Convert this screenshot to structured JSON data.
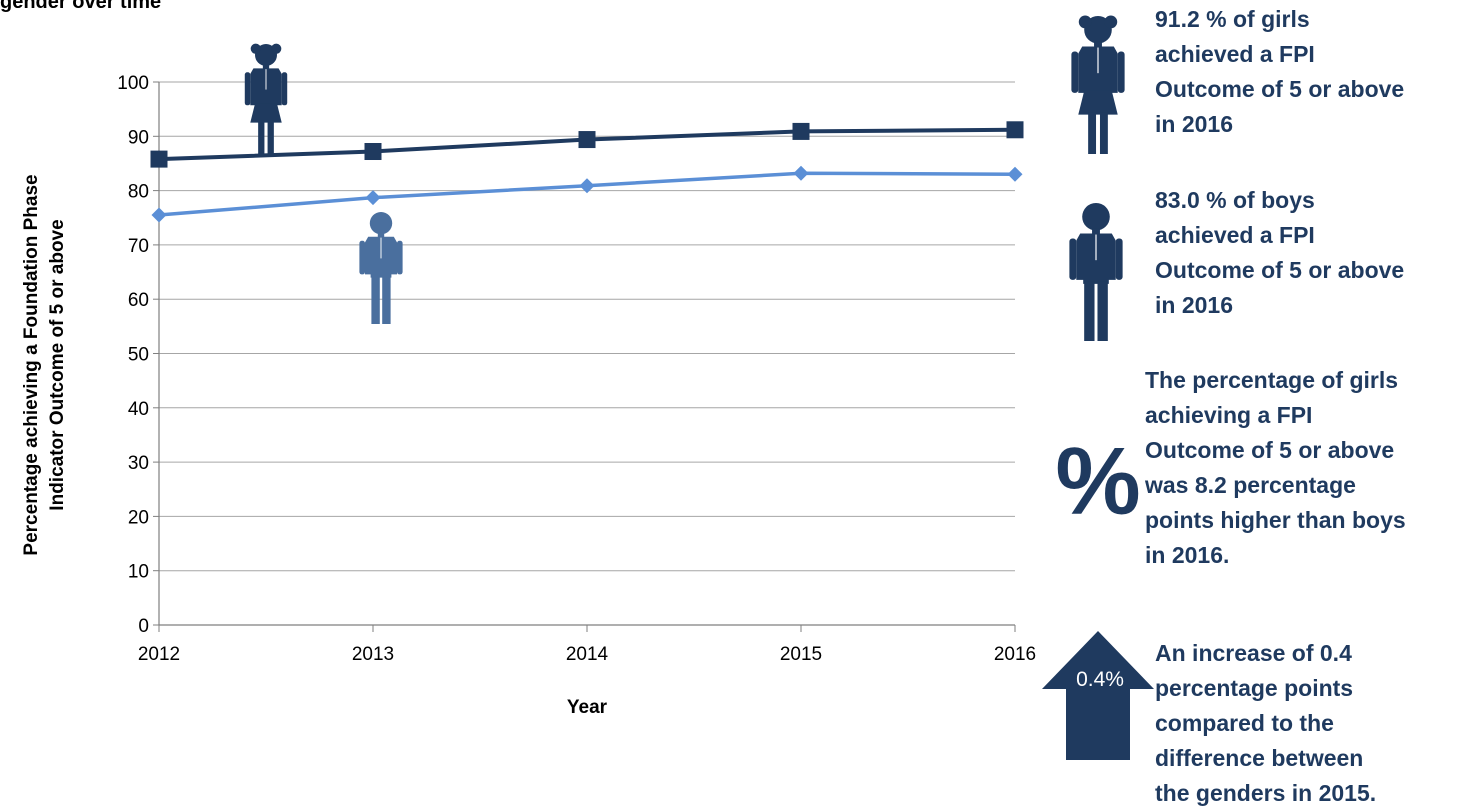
{
  "title": "gender over time",
  "chart_data": {
    "type": "line",
    "x": [
      2012,
      2013,
      2014,
      2015,
      2016
    ],
    "xlabel": "Year",
    "ylabel_lines": [
      "Percentage achieving a Foundation Phase",
      "Indicator Outcome of 5 or above"
    ],
    "ylim": [
      0,
      100
    ],
    "yticks": [
      0,
      10,
      20,
      30,
      40,
      50,
      60,
      70,
      80,
      90,
      100
    ],
    "grid": true,
    "series": [
      {
        "key": "girls",
        "values": [
          85.8,
          87.2,
          89.4,
          90.9,
          91.2
        ],
        "color": "#1f3a5f",
        "marker": "square"
      },
      {
        "key": "boys",
        "values": [
          75.5,
          78.7,
          80.9,
          83.2,
          83.0
        ],
        "color": "#5b8fd6",
        "marker": "diamond"
      }
    ]
  },
  "icons": {
    "girl_chart": {
      "name": "girl-icon",
      "color": "#1f3a5f"
    },
    "boy_chart": {
      "name": "boy-icon",
      "color": "#4a6f9e"
    },
    "girl_side": {
      "name": "girl-icon",
      "color": "#1f3a5f"
    },
    "boy_side": {
      "name": "boy-icon",
      "color": "#1f3a5f"
    },
    "percent": {
      "name": "percent-icon",
      "glyph": "%",
      "color": "#1f3a5f"
    },
    "arrow": {
      "name": "up-arrow-icon",
      "color": "#1f3a5f",
      "label": "0.4%"
    }
  },
  "facts": {
    "girls": "91.2 % of girls\nachieved a FPI\nOutcome of 5 or above\nin 2016",
    "boys": "83.0 % of boys\nachieved a FPI\nOutcome of 5 or above\nin 2016",
    "difference": "The percentage of girls\nachieving a FPI\nOutcome of 5 or above\nwas 8.2 percentage\npoints higher than boys\nin 2016.",
    "change": "An increase of 0.4\npercentage points\ncompared to the\ndifference between\nthe genders in 2015."
  },
  "colors": {
    "navy": "#1f3a5f",
    "light_blue": "#5b8fd6",
    "mid_blue": "#4a6f9e",
    "grid": "#a6a6a6"
  }
}
